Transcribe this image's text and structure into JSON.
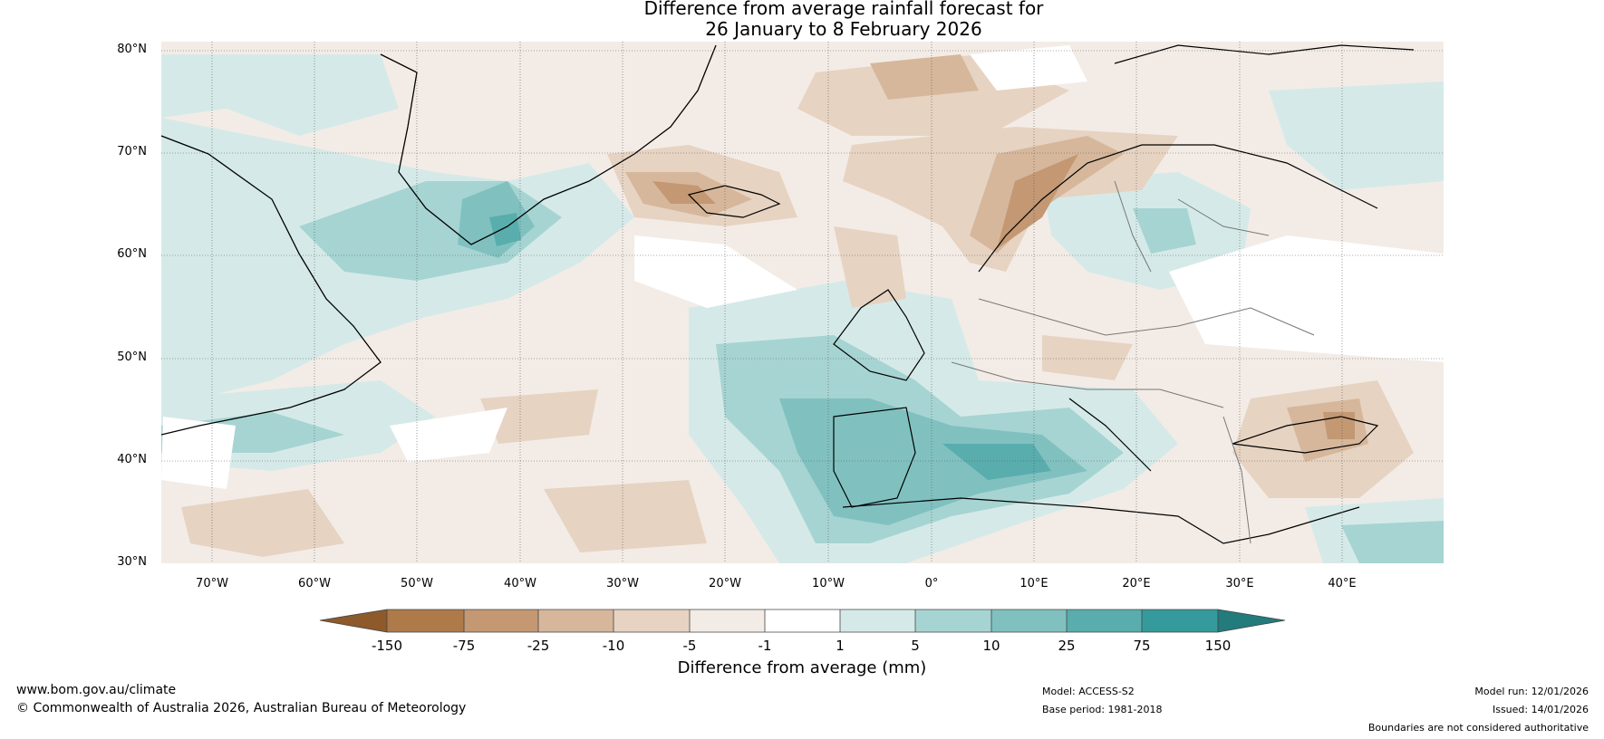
{
  "title": {
    "line1": "Difference from average rainfall forecast for",
    "line2": "26 January to 8 February 2026"
  },
  "map": {
    "lat_labels": [
      "80°N",
      "70°N",
      "60°N",
      "50°N",
      "40°N",
      "30°N"
    ],
    "lon_labels": [
      "70°W",
      "60°W",
      "50°W",
      "40°W",
      "30°W",
      "20°W",
      "10°W",
      "0°",
      "10°E",
      "20°E",
      "30°E",
      "40°E"
    ]
  },
  "colorbar": {
    "ticks": [
      "-150",
      "-75",
      "-25",
      "-10",
      "-5",
      "-1",
      "1",
      "5",
      "10",
      "25",
      "75",
      "150"
    ],
    "colors": [
      "#8e5a2b",
      "#ae7a4a",
      "#c39873",
      "#d6b79b",
      "#e6d3c2",
      "#f3ece6",
      "#ffffff",
      "#d5eae8",
      "#a6d4d2",
      "#80c1c0",
      "#59adad",
      "#359a9b",
      "#237b7c"
    ],
    "label": "Difference from average (mm)"
  },
  "footer": {
    "website": "www.bom.gov.au/climate",
    "copyright": "© Commonwealth of Australia 2026, Australian Bureau of Meteorology",
    "model": "Model: ACCESS-S2",
    "base_period": "Base period: 1981-2018",
    "model_run": "Model run: 12/01/2026",
    "issued": "Issued: 14/01/2026",
    "disclaimer": "Boundaries are not considered authoritative"
  }
}
